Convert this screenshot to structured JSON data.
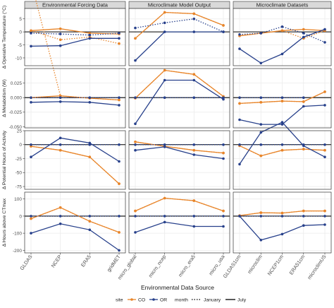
{
  "chart_data": {
    "type": "line",
    "xlabel": "Environmental Data Source",
    "columns": [
      {
        "title": "Environmental Forcing Data",
        "categories": [
          "GLDAS",
          "NCEP",
          "ERA5",
          "gridMET"
        ]
      },
      {
        "title": "Microclimate Model Output",
        "categories": [
          "micro_global",
          "micro_ncep",
          "micro_era5",
          "micro_usa"
        ]
      },
      {
        "title": "Microclimate Datasets",
        "categories": [
          "GLDAS1cm",
          "microclim",
          "NCEP1cm",
          "ERA51cm",
          "microclimUS"
        ]
      }
    ],
    "rows": [
      {
        "ylabel": "Δ Operative Temperature (°C)",
        "ylim": [
          -13,
          9
        ],
        "ticks": [
          5,
          0,
          -5,
          -10
        ],
        "tick_labels": [
          "5",
          "0",
          "-5",
          "-10"
        ],
        "ref": 0
      },
      {
        "ylabel": "Δ Metabolism (W)",
        "ylim": [
          -0.052,
          0.05
        ],
        "ticks": [
          0.025,
          0.0,
          -0.025,
          -0.05
        ],
        "tick_labels": [
          "0.025",
          "0.000",
          "-0.025",
          "-0.050"
        ],
        "ref": 0
      },
      {
        "ylabel": "Δ Potential Hours of Activity",
        "ylim": [
          -80,
          25
        ],
        "ticks": [
          25,
          0,
          -25,
          -50,
          -75
        ],
        "tick_labels": [
          "25",
          "0",
          "-25",
          "-50",
          "-75"
        ],
        "ref": 0
      },
      {
        "ylabel": "Δ Hours above CTmax",
        "ylim": [
          -215,
          140
        ],
        "ticks": [
          100,
          0,
          -100,
          -200
        ],
        "tick_labels": [
          "100",
          "0",
          "-100",
          "-200"
        ],
        "ref": 0
      }
    ],
    "series": [
      {
        "site": "CO",
        "month": "January",
        "color": "#E8852A",
        "dash": "dotted",
        "panels": [
          [
            [
              0.5,
              -3,
              -2,
              -4.5
            ],
            [
              0.2,
              0.003,
              -0.001,
              -0.004
            ],
            [
              -3,
              -10,
              -22,
              -70
            ],
            [
              -15,
              50,
              -30,
              -95
            ]
          ],
          [
            [
              -2.5,
              7.5,
              7,
              2.5
            ],
            [
              -0.001,
              0.047,
              0.04,
              0.002
            ],
            [
              5,
              -3,
              -10,
              -15
            ],
            [
              30,
              105,
              90,
              30
            ]
          ],
          [
            [
              -1.5,
              -0.5,
              0.5,
              -2.5,
              0.5
            ],
            [
              -0.01,
              -0.008,
              -0.006,
              -0.007,
              0.01
            ],
            [
              -2,
              -20,
              -10,
              -8,
              -10
            ],
            [
              3,
              20,
              18,
              30,
              30
            ]
          ]
        ]
      },
      {
        "site": "CO",
        "month": "July",
        "color": "#E8852A",
        "dash": "solid",
        "panels": [
          [
            [
              0.5,
              1.2,
              -0.5,
              -0.8
            ],
            [
              0.0,
              0.003,
              -0.001,
              -0.004
            ],
            [
              -3,
              -10,
              -22,
              -70
            ],
            [
              -15,
              50,
              -30,
              -95
            ]
          ],
          [
            [
              -2.5,
              7.5,
              7,
              2.5
            ],
            [
              -0.001,
              0.047,
              0.04,
              0.002
            ],
            [
              5,
              -3,
              -10,
              -15
            ],
            [
              30,
              105,
              90,
              30
            ]
          ],
          [
            [
              -1.5,
              -0.5,
              0.5,
              1,
              0.5
            ],
            [
              -0.01,
              -0.008,
              -0.006,
              -0.007,
              0.01
            ],
            [
              -2,
              -20,
              -10,
              -8,
              -10
            ],
            [
              3,
              20,
              18,
              30,
              30
            ]
          ]
        ]
      },
      {
        "site": "OR",
        "month": "January",
        "color": "#27408B",
        "dash": "dotted",
        "panels": [
          [
            [
              -0.5,
              -0.8,
              -1.2,
              -0.5
            ],
            [
              0.0,
              0.0,
              0.0,
              0.0
            ],
            [
              0,
              0,
              0,
              0
            ],
            [
              0,
              0,
              0,
              0
            ]
          ],
          [
            [
              1.5,
              3.5,
              5,
              0
            ],
            [
              0.0,
              0.0,
              0.0,
              0.0
            ],
            [
              0,
              0,
              0,
              0
            ],
            [
              0,
              0,
              0,
              0
            ]
          ],
          [
            [
              -1,
              -0.5,
              2,
              -0.5,
              -4
            ],
            [
              0.0,
              0.0,
              0.0,
              0.0
            ],
            [
              0,
              0,
              0,
              0,
              0
            ],
            [
              0,
              0,
              0,
              0,
              0
            ]
          ]
        ]
      },
      {
        "site": "OR",
        "month": "July",
        "color": "#27408B",
        "dash": "solid",
        "panels": [
          [
            [
              -5.5,
              -5.3,
              -2.5,
              -2.5
            ],
            [
              -0.008,
              -0.007,
              -0.008,
              -0.013
            ],
            [
              -22,
              12,
              3,
              -30
            ],
            [
              -100,
              -45,
              -80,
              -200
            ]
          ],
          [
            [
              -11,
              0,
              0,
              0
            ],
            [
              -0.045,
              0.03,
              0.03,
              -0.003
            ],
            [
              -10,
              -4,
              -18,
              -25
            ],
            [
              -95,
              -35,
              -60,
              -60
            ]
          ],
          [
            [
              -6.5,
              -12,
              -8.5,
              -2,
              1
            ],
            [
              -0.038,
              -0.046,
              -0.046,
              -0.015,
              -0.013
            ],
            [
              -35,
              22,
              40,
              -2,
              -22
            ],
            [
              0,
              -140,
              -105,
              -55,
              -50
            ]
          ]
        ]
      }
    ]
  },
  "legend": {
    "site_title": "site",
    "site_items": [
      "CO",
      "OR"
    ],
    "month_title": "month",
    "month_items": [
      "January",
      "July"
    ]
  },
  "colors": {
    "CO": "#E8852A",
    "OR": "#27408B",
    "strip_bg": "#D9D9D9",
    "panel_border": "#333333",
    "grid": "#EBEBEB",
    "ref_line": "#000000"
  }
}
